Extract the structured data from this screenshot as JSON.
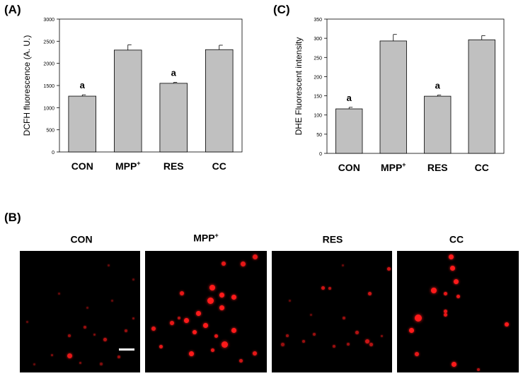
{
  "panels": {
    "a": "(A)",
    "b": "(B)",
    "c": "(C)"
  },
  "chart_data": [
    {
      "type": "bar",
      "title": "",
      "xlabel": "",
      "ylabel": "DCFH fluorescence (A. U.)",
      "categories": [
        "CON",
        "MPP+",
        "RES",
        "CC"
      ],
      "category_labels": [
        {
          "base": "CON",
          "sup": ""
        },
        {
          "base": "MPP",
          "sup": "+"
        },
        {
          "base": "RES",
          "sup": ""
        },
        {
          "base": "CC",
          "sup": ""
        }
      ],
      "values": [
        1260,
        2300,
        1550,
        2310
      ],
      "errors": [
        30,
        120,
        20,
        100
      ],
      "annotations": [
        "a",
        "",
        "a",
        ""
      ],
      "ylim": [
        0,
        3000
      ],
      "yticks": [
        0,
        500,
        1000,
        1500,
        2000,
        2500,
        3000
      ],
      "bar_color": "#c0c0c0"
    },
    {
      "type": "bar",
      "title": "",
      "xlabel": "",
      "ylabel": "DHE Fluorescent intensity",
      "categories": [
        "CON",
        "MPP+",
        "RES",
        "CC"
      ],
      "category_labels": [
        {
          "base": "CON",
          "sup": ""
        },
        {
          "base": "MPP",
          "sup": "+"
        },
        {
          "base": "RES",
          "sup": ""
        },
        {
          "base": "CC",
          "sup": ""
        }
      ],
      "values": [
        116,
        293,
        149,
        296
      ],
      "errors": [
        4,
        17,
        3,
        11
      ],
      "annotations": [
        "a",
        "",
        "a",
        ""
      ],
      "ylim": [
        0,
        350
      ],
      "yticks": [
        0,
        50,
        100,
        150,
        200,
        250,
        300,
        350
      ],
      "bar_color": "#c0c0c0"
    }
  ],
  "images": {
    "labels": [
      {
        "base": "CON",
        "sup": ""
      },
      {
        "base": "MPP",
        "sup": "+"
      },
      {
        "base": "RES",
        "sup": ""
      },
      {
        "base": "CC",
        "sup": ""
      }
    ],
    "cell_color": "#ff1a1a",
    "bg_color": "#000000"
  }
}
